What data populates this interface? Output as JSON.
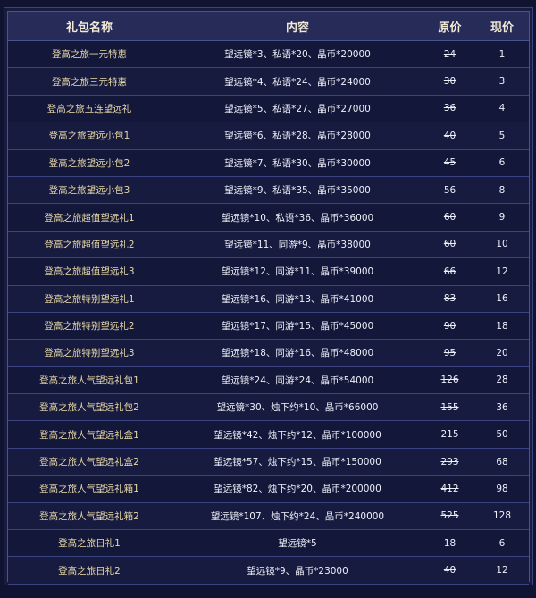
{
  "table": {
    "headers": {
      "name": "礼包名称",
      "content": "内容",
      "original_price": "原价",
      "current_price": "现价"
    },
    "rows": [
      {
        "name": "登高之旅一元特惠",
        "content": "望远镜*3、私语*20、晶币*20000",
        "original_price": "24",
        "current_price": "1"
      },
      {
        "name": "登高之旅三元特惠",
        "content": "望远镜*4、私语*24、晶币*24000",
        "original_price": "30",
        "current_price": "3"
      },
      {
        "name": "登高之旅五连望远礼",
        "content": "望远镜*5、私语*27、晶币*27000",
        "original_price": "36",
        "current_price": "4"
      },
      {
        "name": "登高之旅望远小包1",
        "content": "望远镜*6、私语*28、晶币*28000",
        "original_price": "40",
        "current_price": "5"
      },
      {
        "name": "登高之旅望远小包2",
        "content": "望远镜*7、私语*30、晶币*30000",
        "original_price": "45",
        "current_price": "6"
      },
      {
        "name": "登高之旅望远小包3",
        "content": "望远镜*9、私语*35、晶币*35000",
        "original_price": "56",
        "current_price": "8"
      },
      {
        "name": "登高之旅超值望远礼1",
        "content": "望远镜*10、私语*36、晶币*36000",
        "original_price": "60",
        "current_price": "9"
      },
      {
        "name": "登高之旅超值望远礼2",
        "content": "望远镜*11、同游*9、晶币*38000",
        "original_price": "60",
        "current_price": "10"
      },
      {
        "name": "登高之旅超值望远礼3",
        "content": "望远镜*12、同游*11、晶币*39000",
        "original_price": "66",
        "current_price": "12"
      },
      {
        "name": "登高之旅特别望远礼1",
        "content": "望远镜*16、同游*13、晶币*41000",
        "original_price": "83",
        "current_price": "16"
      },
      {
        "name": "登高之旅特别望远礼2",
        "content": "望远镜*17、同游*15、晶币*45000",
        "original_price": "90",
        "current_price": "18"
      },
      {
        "name": "登高之旅特别望远礼3",
        "content": "望远镜*18、同游*16、晶币*48000",
        "original_price": "95",
        "current_price": "20"
      },
      {
        "name": "登高之旅人气望远礼包1",
        "content": "望远镜*24、同游*24、晶币*54000",
        "original_price": "126",
        "current_price": "28"
      },
      {
        "name": "登高之旅人气望远礼包2",
        "content": "望远镜*30、烛下约*10、晶币*66000",
        "original_price": "155",
        "current_price": "36"
      },
      {
        "name": "登高之旅人气望远礼盒1",
        "content": "望远镜*42、烛下约*12、晶币*100000",
        "original_price": "215",
        "current_price": "50"
      },
      {
        "name": "登高之旅人气望远礼盒2",
        "content": "望远镜*57、烛下约*15、晶币*150000",
        "original_price": "293",
        "current_price": "68"
      },
      {
        "name": "登高之旅人气望远礼箱1",
        "content": "望远镜*82、烛下约*20、晶币*200000",
        "original_price": "412",
        "current_price": "98"
      },
      {
        "name": "登高之旅人气望远礼箱2",
        "content": "望远镜*107、烛下约*24、晶币*240000",
        "original_price": "525",
        "current_price": "128"
      },
      {
        "name": "登高之旅日礼1",
        "content": "望远镜*5",
        "original_price": "18",
        "current_price": "6"
      },
      {
        "name": "登高之旅日礼2",
        "content": "望远镜*9、晶币*23000",
        "original_price": "40",
        "current_price": "12"
      }
    ]
  },
  "colors": {
    "background": "#111431",
    "header_bg": "#262b58",
    "name_text": "#e6d7a6",
    "border": "#4a5390"
  }
}
